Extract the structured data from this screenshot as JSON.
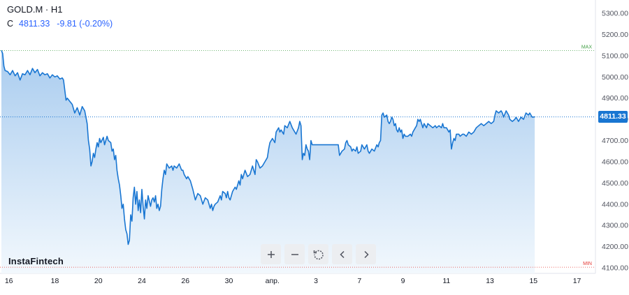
{
  "header": {
    "symbol": "GOLD.M · H1",
    "close_label": "C",
    "close_value": "4811.33",
    "change": "-9.81 (-0.20%)"
  },
  "brand": "InstaFintech",
  "controls": [
    {
      "name": "zoom-in-button",
      "icon": "plus-icon"
    },
    {
      "name": "zoom-out-button",
      "icon": "minus-icon"
    },
    {
      "name": "reset-button",
      "icon": "reset-icon"
    },
    {
      "name": "scroll-left-button",
      "icon": "chevron-left-icon"
    },
    {
      "name": "scroll-right-button",
      "icon": "chevron-right-icon"
    }
  ],
  "colors": {
    "line": "#1976d2",
    "fill_top": "#a9ccef",
    "fill_bottom": "#f2f8fd",
    "max_line": "#43a047",
    "min_line": "#e53935",
    "price_tag": "#1976d2",
    "grid": "#f0f3fa"
  },
  "chart_data": {
    "type": "area",
    "title": "GOLD.M · H1",
    "current_price": 4811.33,
    "current_price_label": "4811.33",
    "max_label": "MAX",
    "max_value": 5124,
    "min_label": "MIN",
    "min_value": 4103,
    "ylim": [
      4100,
      5300
    ],
    "y_ticks": [
      "5300.00",
      "5200.00",
      "5100.00",
      "5000.00",
      "4900.00",
      "4800.00",
      "4700.00",
      "4600.00",
      "4500.00",
      "4400.00",
      "4300.00",
      "4200.00",
      "4100.00"
    ],
    "x_ticks": [
      {
        "label": "16",
        "i": 6
      },
      {
        "label": "18",
        "i": 43
      },
      {
        "label": "20",
        "i": 78
      },
      {
        "label": "24",
        "i": 113
      },
      {
        "label": "26",
        "i": 148
      },
      {
        "label": "30",
        "i": 183
      },
      {
        "label": "апр.",
        "i": 218
      },
      {
        "label": "3",
        "i": 253
      },
      {
        "label": "7",
        "i": 288
      },
      {
        "label": "9",
        "i": 323
      },
      {
        "label": "11",
        "i": 358
      },
      {
        "label": "13",
        "i": 393
      },
      {
        "label": "15",
        "i": 428
      },
      {
        "label": "17",
        "i": 463
      }
    ],
    "x_max_index": 470,
    "series": [
      {
        "values": [
          [
            0,
            5125
          ],
          [
            1,
            5110
          ],
          [
            2,
            5050
          ],
          [
            3,
            5030
          ],
          [
            5,
            5025
          ],
          [
            7,
            5010
          ],
          [
            9,
            5030
          ],
          [
            11,
            5005
          ],
          [
            13,
            5020
          ],
          [
            15,
            4985
          ],
          [
            17,
            5015
          ],
          [
            19,
            5010
          ],
          [
            21,
            5030
          ],
          [
            23,
            5010
          ],
          [
            25,
            5040
          ],
          [
            27,
            5020
          ],
          [
            29,
            5035
          ],
          [
            31,
            5005
          ],
          [
            33,
            5020
          ],
          [
            35,
            5010
          ],
          [
            37,
            5015
          ],
          [
            39,
            4995
          ],
          [
            41,
            5010
          ],
          [
            43,
            5000
          ],
          [
            45,
            5005
          ],
          [
            47,
            4990
          ],
          [
            49,
            4995
          ],
          [
            50,
            4985
          ],
          [
            52,
            4890
          ],
          [
            53,
            4900
          ],
          [
            55,
            4885
          ],
          [
            57,
            4870
          ],
          [
            59,
            4830
          ],
          [
            61,
            4855
          ],
          [
            63,
            4820
          ],
          [
            65,
            4860
          ],
          [
            67,
            4840
          ],
          [
            69,
            4780
          ],
          [
            70,
            4700
          ],
          [
            71,
            4660
          ],
          [
            72,
            4580
          ],
          [
            73,
            4600
          ],
          [
            74,
            4640
          ],
          [
            75,
            4620
          ],
          [
            76,
            4660
          ],
          [
            77,
            4690
          ],
          [
            78,
            4670
          ],
          [
            79,
            4710
          ],
          [
            80,
            4690
          ],
          [
            82,
            4715
          ],
          [
            83,
            4680
          ],
          [
            85,
            4720
          ],
          [
            86,
            4700
          ],
          [
            88,
            4690
          ],
          [
            89,
            4650
          ],
          [
            90,
            4660
          ],
          [
            91,
            4610
          ],
          [
            92,
            4630
          ],
          [
            93,
            4560
          ],
          [
            94,
            4520
          ],
          [
            95,
            4490
          ],
          [
            96,
            4440
          ],
          [
            97,
            4380
          ],
          [
            98,
            4400
          ],
          [
            99,
            4330
          ],
          [
            100,
            4280
          ],
          [
            101,
            4260
          ],
          [
            102,
            4210
          ],
          [
            103,
            4230
          ],
          [
            104,
            4350
          ],
          [
            105,
            4320
          ],
          [
            106,
            4430
          ],
          [
            107,
            4480
          ],
          [
            108,
            4400
          ],
          [
            109,
            4460
          ],
          [
            110,
            4370
          ],
          [
            111,
            4420
          ],
          [
            112,
            4360
          ],
          [
            113,
            4470
          ],
          [
            114,
            4390
          ],
          [
            115,
            4330
          ],
          [
            116,
            4420
          ],
          [
            117,
            4380
          ],
          [
            118,
            4440
          ],
          [
            120,
            4390
          ],
          [
            121,
            4420
          ],
          [
            122,
            4430
          ],
          [
            123,
            4410
          ],
          [
            124,
            4440
          ],
          [
            125,
            4380
          ],
          [
            126,
            4400
          ],
          [
            127,
            4370
          ],
          [
            128,
            4390
          ],
          [
            129,
            4470
          ],
          [
            130,
            4520
          ],
          [
            131,
            4560
          ],
          [
            132,
            4540
          ],
          [
            133,
            4590
          ],
          [
            135,
            4570
          ],
          [
            137,
            4580
          ],
          [
            138,
            4560
          ],
          [
            139,
            4580
          ],
          [
            141,
            4570
          ],
          [
            143,
            4590
          ],
          [
            145,
            4560
          ],
          [
            146,
            4560
          ],
          [
            147,
            4540
          ],
          [
            149,
            4520
          ],
          [
            150,
            4530
          ],
          [
            152,
            4510
          ],
          [
            154,
            4470
          ],
          [
            156,
            4420
          ],
          [
            158,
            4450
          ],
          [
            160,
            4440
          ],
          [
            162,
            4400
          ],
          [
            164,
            4430
          ],
          [
            166,
            4420
          ],
          [
            168,
            4380
          ],
          [
            169,
            4400
          ],
          [
            170,
            4370
          ],
          [
            171,
            4390
          ],
          [
            172,
            4400
          ],
          [
            174,
            4410
          ],
          [
            176,
            4440
          ],
          [
            177,
            4420
          ],
          [
            178,
            4460
          ],
          [
            180,
            4450
          ],
          [
            181,
            4430
          ],
          [
            182,
            4460
          ],
          [
            183,
            4430
          ],
          [
            184,
            4420
          ],
          [
            186,
            4460
          ],
          [
            188,
            4480
          ],
          [
            189,
            4470
          ],
          [
            191,
            4510
          ],
          [
            192,
            4490
          ],
          [
            193,
            4540
          ],
          [
            194,
            4520
          ],
          [
            196,
            4560
          ],
          [
            198,
            4530
          ],
          [
            200,
            4540
          ],
          [
            202,
            4580
          ],
          [
            203,
            4560
          ],
          [
            204,
            4540
          ],
          [
            205,
            4610
          ],
          [
            206,
            4600
          ],
          [
            208,
            4570
          ],
          [
            210,
            4580
          ],
          [
            212,
            4600
          ],
          [
            214,
            4620
          ],
          [
            215,
            4660
          ],
          [
            216,
            4690
          ],
          [
            218,
            4710
          ],
          [
            220,
            4690
          ],
          [
            221,
            4740
          ],
          [
            223,
            4760
          ],
          [
            224,
            4740
          ],
          [
            225,
            4750
          ],
          [
            227,
            4730
          ],
          [
            228,
            4770
          ],
          [
            230,
            4760
          ],
          [
            232,
            4790
          ],
          [
            234,
            4760
          ],
          [
            235,
            4750
          ],
          [
            237,
            4730
          ],
          [
            239,
            4760
          ],
          [
            240,
            4790
          ],
          [
            241,
            4770
          ],
          [
            242,
            4610
          ],
          [
            243,
            4640
          ],
          [
            244,
            4630
          ],
          [
            245,
            4680
          ],
          [
            246,
            4660
          ],
          [
            247,
            4650
          ],
          [
            248,
            4610
          ],
          [
            249,
            4700
          ],
          [
            250,
            4680
          ],
          [
            252,
            4680
          ],
          [
            256,
            4680
          ],
          [
            260,
            4680
          ],
          [
            264,
            4680
          ],
          [
            268,
            4680
          ],
          [
            271,
            4680
          ],
          [
            272,
            4630
          ],
          [
            273,
            4640
          ],
          [
            274,
            4650
          ],
          [
            276,
            4660
          ],
          [
            277,
            4690
          ],
          [
            278,
            4700
          ],
          [
            279,
            4680
          ],
          [
            281,
            4670
          ],
          [
            282,
            4650
          ],
          [
            283,
            4660
          ],
          [
            285,
            4650
          ],
          [
            286,
            4670
          ],
          [
            287,
            4640
          ],
          [
            289,
            4650
          ],
          [
            290,
            4680
          ],
          [
            292,
            4660
          ],
          [
            294,
            4680
          ],
          [
            295,
            4650
          ],
          [
            296,
            4640
          ],
          [
            298,
            4660
          ],
          [
            300,
            4650
          ],
          [
            302,
            4680
          ],
          [
            303,
            4670
          ],
          [
            304,
            4690
          ],
          [
            305,
            4700
          ],
          [
            306,
            4820
          ],
          [
            307,
            4830
          ],
          [
            308,
            4810
          ],
          [
            310,
            4820
          ],
          [
            311,
            4790
          ],
          [
            312,
            4780
          ],
          [
            313,
            4790
          ],
          [
            314,
            4810
          ],
          [
            315,
            4800
          ],
          [
            316,
            4770
          ],
          [
            317,
            4780
          ],
          [
            318,
            4750
          ],
          [
            319,
            4740
          ],
          [
            320,
            4760
          ],
          [
            321,
            4740
          ],
          [
            322,
            4750
          ],
          [
            323,
            4710
          ],
          [
            324,
            4730
          ],
          [
            325,
            4720
          ],
          [
            327,
            4720
          ],
          [
            329,
            4730
          ],
          [
            330,
            4720
          ],
          [
            331,
            4740
          ],
          [
            333,
            4760
          ],
          [
            334,
            4770
          ],
          [
            335,
            4800
          ],
          [
            336,
            4790
          ],
          [
            337,
            4800
          ],
          [
            339,
            4760
          ],
          [
            340,
            4780
          ],
          [
            341,
            4770
          ],
          [
            342,
            4760
          ],
          [
            343,
            4780
          ],
          [
            345,
            4770
          ],
          [
            347,
            4760
          ],
          [
            349,
            4770
          ],
          [
            350,
            4760
          ],
          [
            352,
            4770
          ],
          [
            354,
            4760
          ],
          [
            355,
            4780
          ],
          [
            356,
            4760
          ],
          [
            358,
            4760
          ],
          [
            359,
            4750
          ],
          [
            360,
            4740
          ],
          [
            361,
            4750
          ],
          [
            362,
            4660
          ],
          [
            363,
            4690
          ],
          [
            364,
            4710
          ],
          [
            365,
            4700
          ],
          [
            366,
            4730
          ],
          [
            368,
            4730
          ],
          [
            369,
            4720
          ],
          [
            371,
            4730
          ],
          [
            372,
            4730
          ],
          [
            374,
            4720
          ],
          [
            376,
            4740
          ],
          [
            378,
            4730
          ],
          [
            380,
            4740
          ],
          [
            382,
            4760
          ],
          [
            384,
            4770
          ],
          [
            386,
            4780
          ],
          [
            388,
            4770
          ],
          [
            390,
            4780
          ],
          [
            392,
            4790
          ],
          [
            394,
            4780
          ],
          [
            396,
            4790
          ],
          [
            397,
            4820
          ],
          [
            398,
            4840
          ],
          [
            400,
            4830
          ],
          [
            402,
            4840
          ],
          [
            403,
            4830
          ],
          [
            404,
            4810
          ],
          [
            406,
            4840
          ],
          [
            408,
            4820
          ],
          [
            409,
            4800
          ],
          [
            411,
            4790
          ],
          [
            413,
            4800
          ],
          [
            414,
            4810
          ],
          [
            416,
            4790
          ],
          [
            418,
            4810
          ],
          [
            420,
            4800
          ],
          [
            422,
            4830
          ],
          [
            424,
            4820
          ],
          [
            425,
            4830
          ],
          [
            427,
            4810
          ],
          [
            429,
            4811.33
          ]
        ]
      }
    ]
  }
}
